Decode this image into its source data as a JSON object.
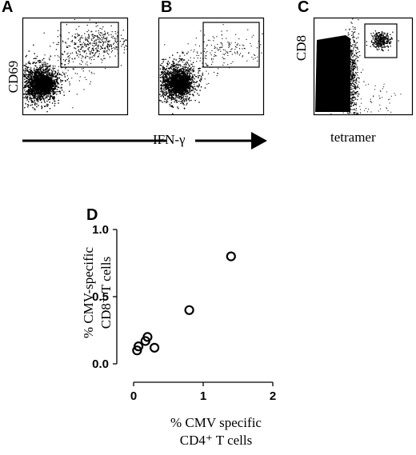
{
  "panels": {
    "a": {
      "letter": "A",
      "ylabel": "CD69"
    },
    "b": {
      "letter": "B"
    },
    "c": {
      "letter": "C",
      "ylabel": "CD8",
      "xlabel": "tetramer"
    },
    "shared_xlabel": "IFN-γ"
  },
  "chart_data": [
    {
      "type": "scatter",
      "panel": "A",
      "ylabel": "CD69",
      "xlabel": "IFN-γ",
      "gate": "upper-right"
    },
    {
      "type": "scatter",
      "panel": "B",
      "xlabel": "IFN-γ",
      "gate": "upper-right"
    },
    {
      "type": "scatter",
      "panel": "C",
      "ylabel": "CD8",
      "xlabel": "tetramer",
      "gate": "upper-right"
    },
    {
      "type": "scatter",
      "panel": "D",
      "xlabel_line1": "% CMV specific",
      "xlabel_line2": "CD4⁺ T cells",
      "ylabel_line1": "% CMV-specific",
      "ylabel_line2": "CD8⁺ T cells",
      "xlim": [
        0,
        2
      ],
      "ylim": [
        0,
        1.0
      ],
      "xticks": [
        "0",
        "1",
        "2"
      ],
      "yticks": [
        "0.0",
        "0.5",
        "1.0"
      ],
      "points": [
        {
          "x": 0.05,
          "y": 0.1
        },
        {
          "x": 0.07,
          "y": 0.13
        },
        {
          "x": 0.17,
          "y": 0.17
        },
        {
          "x": 0.2,
          "y": 0.2
        },
        {
          "x": 0.3,
          "y": 0.12
        },
        {
          "x": 0.8,
          "y": 0.4
        },
        {
          "x": 1.4,
          "y": 0.8
        }
      ]
    }
  ]
}
